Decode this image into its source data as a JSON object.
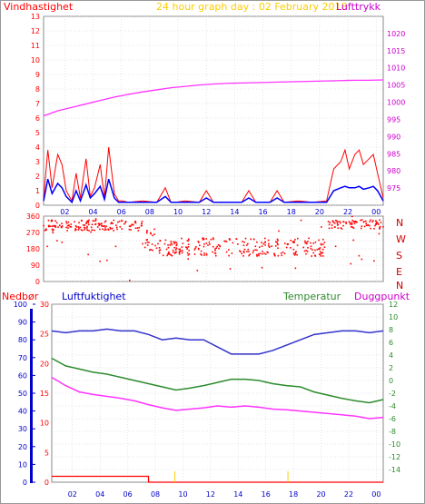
{
  "colors": {
    "wind": "#ff0000",
    "wind_avg": "#0000ff",
    "pressure": "#ff33ff",
    "direction": "#ff0000",
    "humidity": "#3333cc",
    "temperature": "#2e8b2e",
    "dewpoint": "#ff33ff",
    "rain": "#ff0000",
    "title": "#ffcc00",
    "grid": "#cccccc"
  },
  "header": {
    "wind_label": "Vindhastighet",
    "title": "24 hour graph day : 02 February 2018",
    "pressure_label": "Lufttrykk"
  },
  "lower_header": {
    "rain_label": "Nedbør",
    "humidity_label": "Luftfuktighet",
    "temp_label": "Temperatur",
    "dew_label": "Duggpunkt"
  },
  "compass": [
    "N",
    "W",
    "S",
    "E",
    "N"
  ],
  "x_ticks": [
    "02",
    "04",
    "06",
    "08",
    "10",
    "12",
    "14",
    "16",
    "18",
    "20",
    "22",
    "00"
  ],
  "chart_data": [
    {
      "type": "line",
      "name": "wind",
      "x_hours": [
        0,
        0.3,
        0.6,
        1,
        1.3,
        1.6,
        2,
        2.3,
        2.6,
        3,
        3.3,
        3.6,
        4,
        4.3,
        4.6,
        5,
        5.3,
        5.6,
        6,
        7,
        8,
        8.6,
        9,
        9.3,
        10,
        11,
        11.5,
        12,
        12.5,
        13,
        14,
        14.5,
        15,
        16,
        16.5,
        17,
        18,
        19,
        20,
        20.5,
        21,
        21.3,
        21.6,
        22,
        22.3,
        22.6,
        23,
        23.3,
        23.6,
        24
      ],
      "gust": [
        0.5,
        3.8,
        1.2,
        3.5,
        2.8,
        1.0,
        0.3,
        2.2,
        0.5,
        3.2,
        0.6,
        1.2,
        2.8,
        0.5,
        4.0,
        0.8,
        0.3,
        0.3,
        0.2,
        0.3,
        0.2,
        1.2,
        0.2,
        0.2,
        0.3,
        0.2,
        1.0,
        0.2,
        0.2,
        0.2,
        0.2,
        1.0,
        0.2,
        0.2,
        1.0,
        0.2,
        0.3,
        0.2,
        0.3,
        2.5,
        3.0,
        3.8,
        2.5,
        3.5,
        3.8,
        2.8,
        3.2,
        3.5,
        2.2,
        0.5
      ],
      "avg": [
        0.3,
        1.8,
        0.8,
        1.5,
        1.2,
        0.6,
        0.2,
        1.0,
        0.3,
        1.4,
        0.5,
        0.8,
        1.3,
        0.4,
        1.8,
        0.5,
        0.2,
        0.2,
        0.2,
        0.2,
        0.2,
        0.6,
        0.2,
        0.2,
        0.2,
        0.2,
        0.5,
        0.2,
        0.2,
        0.2,
        0.2,
        0.5,
        0.2,
        0.2,
        0.5,
        0.2,
        0.2,
        0.2,
        0.2,
        1.0,
        1.2,
        1.3,
        1.2,
        1.2,
        1.3,
        1.1,
        1.2,
        1.3,
        1.0,
        0.3
      ],
      "ylim": [
        0,
        13
      ],
      "y_ticks": [
        0,
        1,
        2,
        3,
        4,
        5,
        6,
        7,
        8,
        9,
        10,
        11,
        12,
        13
      ]
    },
    {
      "type": "line",
      "name": "pressure",
      "x_hours": [
        0,
        1,
        2,
        3,
        4,
        5,
        6,
        7,
        8,
        9,
        10,
        11,
        12,
        13,
        14,
        15,
        16,
        17,
        18,
        19,
        20,
        21,
        22,
        23,
        24
      ],
      "values": [
        996,
        997.5,
        998.5,
        999.5,
        1000.5,
        1001.5,
        1002.3,
        1003,
        1003.6,
        1004.2,
        1004.6,
        1005,
        1005.3,
        1005.5,
        1005.6,
        1005.7,
        1005.8,
        1005.9,
        1006,
        1006.1,
        1006.2,
        1006.3,
        1006.4,
        1006.4,
        1006.5
      ],
      "ylim": [
        970,
        1025
      ],
      "y_ticks": [
        975,
        980,
        985,
        990,
        995,
        1000,
        1005,
        1010,
        1015,
        1020
      ]
    },
    {
      "type": "scatter",
      "name": "direction",
      "ylim": [
        0,
        360
      ],
      "y_ticks": [
        0,
        45,
        90,
        135,
        180,
        225,
        270,
        315,
        360
      ],
      "segments": [
        [
          0,
          7,
          310,
          30
        ],
        [
          7,
          8,
          230,
          60
        ],
        [
          8,
          20,
          190,
          50
        ],
        [
          20,
          24,
          315,
          25
        ]
      ]
    },
    {
      "type": "line",
      "name": "humidity",
      "x_hours": [
        0,
        1,
        2,
        3,
        4,
        5,
        6,
        7,
        8,
        9,
        10,
        11,
        12,
        13,
        14,
        15,
        16,
        17,
        18,
        19,
        20,
        21,
        22,
        23,
        24
      ],
      "values": [
        85,
        84,
        85,
        85,
        86,
        85,
        85,
        83,
        80,
        81,
        80,
        80,
        76,
        72,
        72,
        72,
        74,
        77,
        80,
        83,
        84,
        85,
        85,
        84,
        85
      ],
      "ylim": [
        0,
        100
      ],
      "y_ticks": [
        0,
        10,
        20,
        30,
        40,
        50,
        60,
        70,
        80,
        90,
        100
      ]
    },
    {
      "type": "line",
      "name": "temperature",
      "x_hours": [
        0,
        1,
        2,
        3,
        4,
        5,
        6,
        7,
        8,
        9,
        10,
        11,
        12,
        13,
        14,
        15,
        16,
        17,
        18,
        19,
        20,
        21,
        22,
        23,
        24
      ],
      "values": [
        3.5,
        2.3,
        1.8,
        1.3,
        1.0,
        0.5,
        0.0,
        -0.5,
        -1.0,
        -1.5,
        -1.2,
        -0.8,
        -0.3,
        0.2,
        0.2,
        0.0,
        -0.5,
        -0.8,
        -1.0,
        -1.8,
        -2.3,
        -2.8,
        -3.2,
        -3.5,
        -3.0
      ],
      "ylim": [
        -16,
        12
      ],
      "y_ticks": [
        -14,
        -12,
        -10,
        -8,
        -6,
        -4,
        -2,
        0,
        2,
        4,
        6,
        8,
        10,
        12
      ]
    },
    {
      "type": "line",
      "name": "dewpoint",
      "x_hours": [
        0,
        1,
        2,
        3,
        4,
        5,
        6,
        7,
        8,
        9,
        10,
        11,
        12,
        13,
        14,
        15,
        16,
        17,
        18,
        19,
        20,
        21,
        22,
        23,
        24
      ],
      "values": [
        0.5,
        -0.8,
        -1.8,
        -2.2,
        -2.5,
        -2.8,
        -3.2,
        -3.8,
        -4.3,
        -4.7,
        -4.5,
        -4.3,
        -4.0,
        -4.2,
        -4.0,
        -4.2,
        -4.5,
        -4.6,
        -4.8,
        -5.0,
        -5.2,
        -5.4,
        -5.6,
        -6.0,
        -5.8
      ],
      "ylim": [
        -16,
        12
      ]
    },
    {
      "type": "line",
      "name": "rain",
      "x_hours": [
        0,
        7,
        7.01,
        24
      ],
      "values": [
        1,
        1,
        0,
        0
      ],
      "ylim": [
        0,
        30
      ],
      "y_ticks": [
        0,
        5,
        10,
        15,
        20,
        25,
        30
      ]
    }
  ]
}
